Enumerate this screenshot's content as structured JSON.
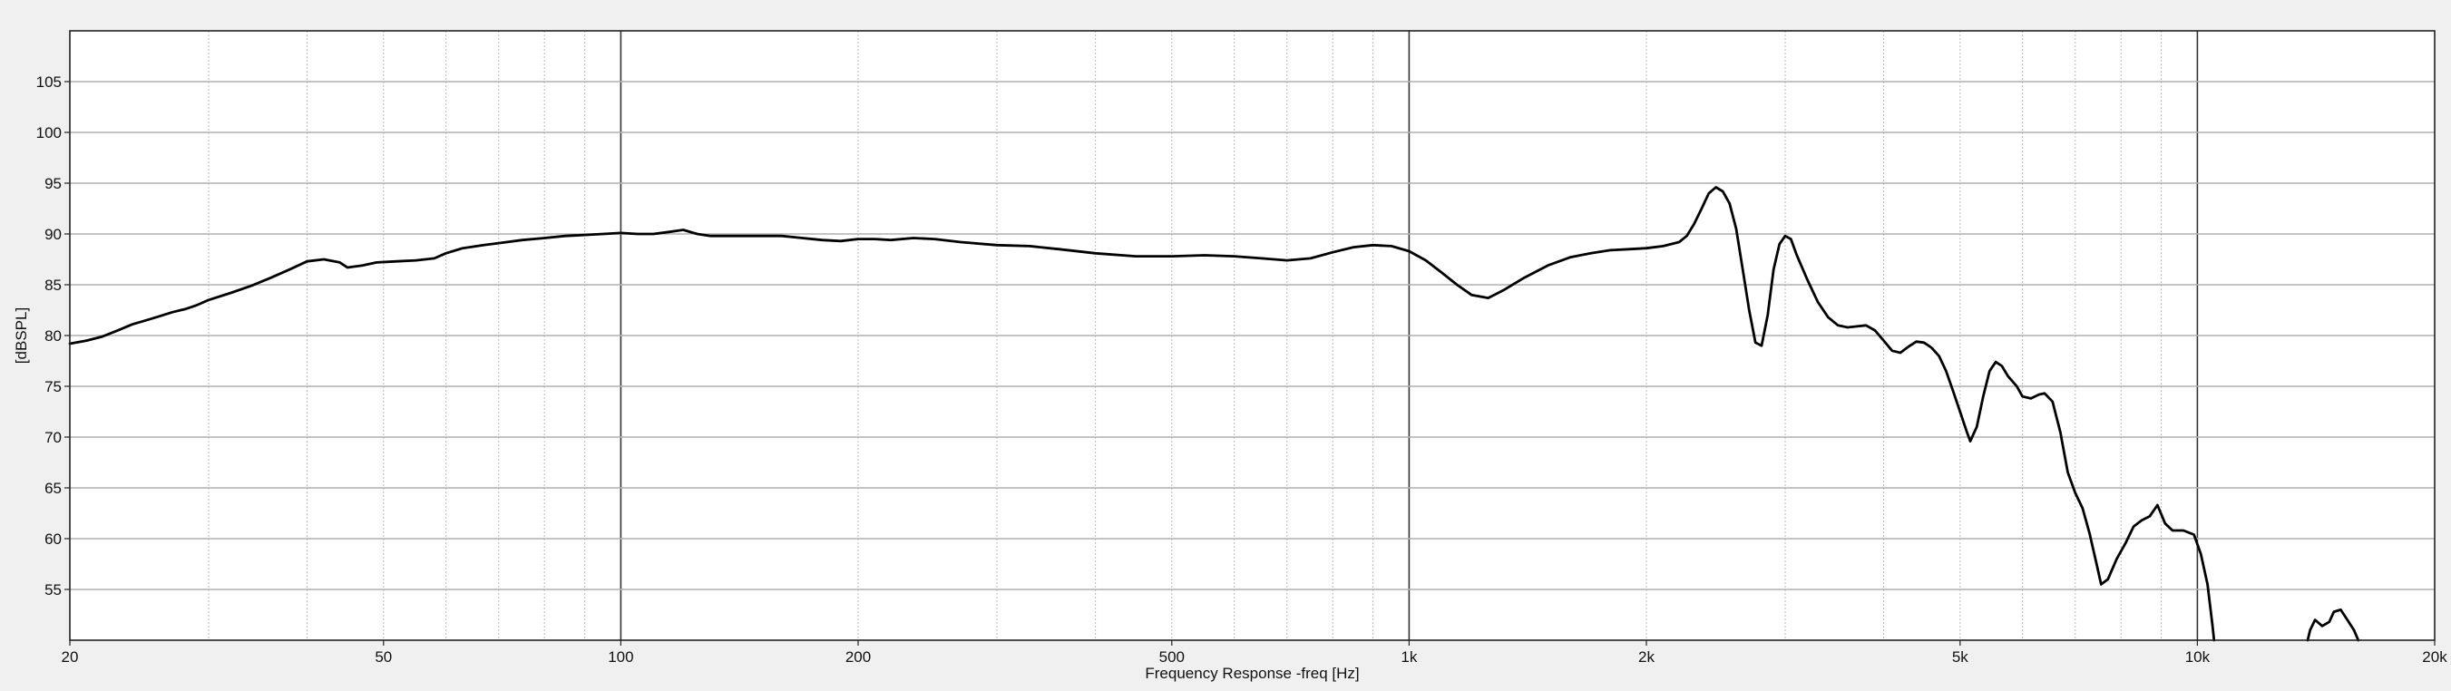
{
  "chart_data": {
    "type": "line",
    "title": "",
    "xlabel": "Frequency Response -freq [Hz]",
    "ylabel": "[dBSPL]",
    "x_scale": "log",
    "xlim": [
      20,
      20000
    ],
    "ylim": [
      50,
      110
    ],
    "x_ticks": [
      {
        "value": 20,
        "label": "20"
      },
      {
        "value": 50,
        "label": "50"
      },
      {
        "value": 100,
        "label": "100"
      },
      {
        "value": 200,
        "label": "200"
      },
      {
        "value": 500,
        "label": "500"
      },
      {
        "value": 1000,
        "label": "1k"
      },
      {
        "value": 2000,
        "label": "2k"
      },
      {
        "value": 5000,
        "label": "5k"
      },
      {
        "value": 10000,
        "label": "10k"
      },
      {
        "value": 20000,
        "label": "20k"
      }
    ],
    "y_ticks": [
      55,
      60,
      65,
      70,
      75,
      80,
      85,
      90,
      95,
      100,
      105
    ],
    "grid": true,
    "legend": "none",
    "colors": {
      "background": "#f0f0f0",
      "plot_background": "#ffffff",
      "grid_major": "#b0b0b0",
      "grid_minor": "#bbbbbb",
      "decade_line": "#333333",
      "line": "#000000"
    },
    "series": [
      {
        "values": [
          [
            20,
            79.2
          ],
          [
            21,
            79.5
          ],
          [
            22,
            79.9
          ],
          [
            23,
            80.5
          ],
          [
            24,
            81.1
          ],
          [
            25,
            81.5
          ],
          [
            26,
            81.9
          ],
          [
            27,
            82.3
          ],
          [
            28,
            82.6
          ],
          [
            29,
            83.0
          ],
          [
            30,
            83.5
          ],
          [
            32,
            84.2
          ],
          [
            34,
            84.9
          ],
          [
            36,
            85.7
          ],
          [
            38,
            86.5
          ],
          [
            40,
            87.3
          ],
          [
            42,
            87.5
          ],
          [
            44,
            87.2
          ],
          [
            45,
            86.7
          ],
          [
            47,
            86.9
          ],
          [
            49,
            87.2
          ],
          [
            52,
            87.3
          ],
          [
            55,
            87.4
          ],
          [
            58,
            87.6
          ],
          [
            60,
            88.1
          ],
          [
            63,
            88.6
          ],
          [
            67,
            88.9
          ],
          [
            70,
            89.1
          ],
          [
            75,
            89.4
          ],
          [
            80,
            89.6
          ],
          [
            85,
            89.8
          ],
          [
            90,
            89.9
          ],
          [
            95,
            90.0
          ],
          [
            100,
            90.1
          ],
          [
            105,
            90.0
          ],
          [
            110,
            90.0
          ],
          [
            115,
            90.2
          ],
          [
            120,
            90.4
          ],
          [
            125,
            90.0
          ],
          [
            130,
            89.8
          ],
          [
            140,
            89.8
          ],
          [
            150,
            89.8
          ],
          [
            160,
            89.8
          ],
          [
            170,
            89.6
          ],
          [
            180,
            89.4
          ],
          [
            190,
            89.3
          ],
          [
            200,
            89.5
          ],
          [
            210,
            89.5
          ],
          [
            220,
            89.4
          ],
          [
            235,
            89.6
          ],
          [
            250,
            89.5
          ],
          [
            270,
            89.2
          ],
          [
            300,
            88.9
          ],
          [
            330,
            88.8
          ],
          [
            360,
            88.5
          ],
          [
            400,
            88.1
          ],
          [
            450,
            87.8
          ],
          [
            500,
            87.8
          ],
          [
            550,
            87.9
          ],
          [
            600,
            87.8
          ],
          [
            650,
            87.6
          ],
          [
            700,
            87.4
          ],
          [
            750,
            87.6
          ],
          [
            800,
            88.2
          ],
          [
            850,
            88.7
          ],
          [
            900,
            88.9
          ],
          [
            950,
            88.8
          ],
          [
            1000,
            88.3
          ],
          [
            1050,
            87.4
          ],
          [
            1100,
            86.2
          ],
          [
            1150,
            85.0
          ],
          [
            1200,
            84.0
          ],
          [
            1260,
            83.7
          ],
          [
            1320,
            84.5
          ],
          [
            1400,
            85.7
          ],
          [
            1500,
            86.9
          ],
          [
            1600,
            87.7
          ],
          [
            1700,
            88.1
          ],
          [
            1800,
            88.4
          ],
          [
            1900,
            88.5
          ],
          [
            2000,
            88.6
          ],
          [
            2100,
            88.8
          ],
          [
            2200,
            89.2
          ],
          [
            2250,
            89.8
          ],
          [
            2300,
            91.0
          ],
          [
            2350,
            92.5
          ],
          [
            2400,
            94.0
          ],
          [
            2450,
            94.6
          ],
          [
            2500,
            94.2
          ],
          [
            2550,
            93.0
          ],
          [
            2600,
            90.5
          ],
          [
            2650,
            86.5
          ],
          [
            2700,
            82.5
          ],
          [
            2750,
            79.3
          ],
          [
            2800,
            79.0
          ],
          [
            2850,
            82.0
          ],
          [
            2900,
            86.5
          ],
          [
            2950,
            89.0
          ],
          [
            3000,
            89.8
          ],
          [
            3050,
            89.5
          ],
          [
            3100,
            88.0
          ],
          [
            3200,
            85.5
          ],
          [
            3300,
            83.3
          ],
          [
            3400,
            81.8
          ],
          [
            3500,
            81.0
          ],
          [
            3600,
            80.8
          ],
          [
            3700,
            80.9
          ],
          [
            3800,
            81.0
          ],
          [
            3900,
            80.5
          ],
          [
            4000,
            79.5
          ],
          [
            4100,
            78.5
          ],
          [
            4200,
            78.3
          ],
          [
            4300,
            78.9
          ],
          [
            4400,
            79.4
          ],
          [
            4500,
            79.3
          ],
          [
            4600,
            78.8
          ],
          [
            4700,
            78.0
          ],
          [
            4800,
            76.5
          ],
          [
            4900,
            74.5
          ],
          [
            5000,
            72.5
          ],
          [
            5100,
            70.5
          ],
          [
            5150,
            69.6
          ],
          [
            5250,
            71.0
          ],
          [
            5350,
            74.0
          ],
          [
            5450,
            76.5
          ],
          [
            5550,
            77.4
          ],
          [
            5650,
            77.0
          ],
          [
            5750,
            76.0
          ],
          [
            5900,
            75.0
          ],
          [
            6000,
            74.0
          ],
          [
            6150,
            73.8
          ],
          [
            6300,
            74.2
          ],
          [
            6400,
            74.3
          ],
          [
            6550,
            73.5
          ],
          [
            6700,
            70.5
          ],
          [
            6850,
            66.5
          ],
          [
            7000,
            64.5
          ],
          [
            7150,
            63.0
          ],
          [
            7300,
            60.5
          ],
          [
            7450,
            57.5
          ],
          [
            7550,
            55.5
          ],
          [
            7700,
            56.0
          ],
          [
            7900,
            58.0
          ],
          [
            8100,
            59.5
          ],
          [
            8300,
            61.2
          ],
          [
            8500,
            61.8
          ],
          [
            8700,
            62.2
          ],
          [
            8900,
            63.3
          ],
          [
            9100,
            61.5
          ],
          [
            9300,
            60.8
          ],
          [
            9600,
            60.8
          ],
          [
            9900,
            60.4
          ],
          [
            10100,
            58.5
          ],
          [
            10300,
            55.5
          ],
          [
            10450,
            51.5
          ],
          [
            10500,
            50.0
          ]
        ]
      },
      {
        "values": [
          [
            13800,
            50.0
          ],
          [
            13900,
            51.0
          ],
          [
            14100,
            52.0
          ],
          [
            14400,
            51.4
          ],
          [
            14700,
            51.8
          ],
          [
            14900,
            52.8
          ],
          [
            15200,
            53.0
          ],
          [
            15500,
            52.0
          ],
          [
            15800,
            51.0
          ],
          [
            16000,
            50.0
          ]
        ]
      }
    ]
  }
}
